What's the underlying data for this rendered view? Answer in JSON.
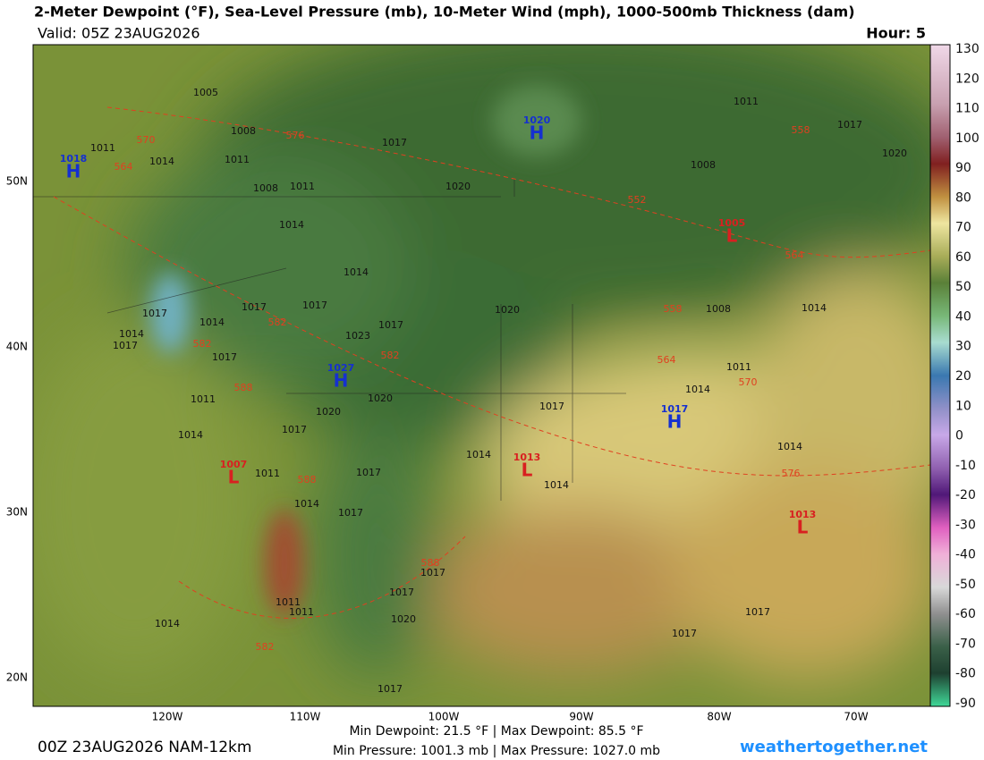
{
  "header": {
    "title": "2-Meter Dewpoint (°F), Sea-Level Pressure (mb), 10-Meter Wind (mph), 1000-500mb Thickness (dam)",
    "valid": "Valid: 05Z 23AUG2026",
    "hour": "Hour: 5"
  },
  "map": {
    "lat_labels": [
      "50N",
      "40N",
      "30N",
      "20N"
    ],
    "lon_labels": [
      "120W",
      "110W",
      "100W",
      "90W",
      "80W",
      "70W"
    ],
    "pressure_centers": [
      {
        "letter": "H",
        "value": "1018"
      },
      {
        "letter": "H",
        "value": "1020"
      },
      {
        "letter": "L",
        "value": "1005"
      },
      {
        "letter": "H",
        "value": "1027"
      },
      {
        "letter": "H",
        "value": "1017"
      },
      {
        "letter": "L",
        "value": "1013"
      },
      {
        "letter": "L",
        "value": "1007"
      },
      {
        "letter": "L",
        "value": "1013"
      }
    ],
    "isobar_labels": [
      "1005",
      "1008",
      "1011",
      "1014",
      "1011",
      "1008",
      "1011",
      "1017",
      "1020",
      "1011",
      "1017",
      "1020",
      "1008",
      "1014",
      "1014",
      "1017",
      "1014",
      "1017",
      "1017",
      "1014",
      "1017",
      "1017",
      "1011",
      "1020",
      "1020",
      "1023",
      "1017",
      "1020",
      "1008",
      "1014",
      "1011",
      "1014",
      "1017",
      "1014",
      "1017",
      "1014",
      "1014",
      "1011",
      "1014",
      "1017",
      "1017",
      "1014",
      "1017",
      "1017",
      "1020",
      "1011",
      "1011",
      "1014",
      "1017",
      "1017",
      "1017"
    ],
    "thickness_labels": [
      "570",
      "564",
      "576",
      "552",
      "558",
      "564",
      "558",
      "564",
      "570",
      "582",
      "582",
      "582",
      "588",
      "588",
      "588",
      "576",
      "582"
    ]
  },
  "colorbar": {
    "ticks": [
      "130",
      "120",
      "110",
      "100",
      "90",
      "80",
      "70",
      "60",
      "50",
      "40",
      "30",
      "20",
      "10",
      "0",
      "-10",
      "-20",
      "-30",
      "-40",
      "-50",
      "-60",
      "-70",
      "-80",
      "-90"
    ]
  },
  "footer": {
    "run": "00Z 23AUG2026 NAM-12km",
    "dewpoint_range": "Min Dewpoint:  21.5 °F | Max Dewpoint:  85.5 °F",
    "pressure_range": "Min Pressure: 1001.3 mb | Max Pressure: 1027.0 mb",
    "site": "weathertogether.net"
  }
}
